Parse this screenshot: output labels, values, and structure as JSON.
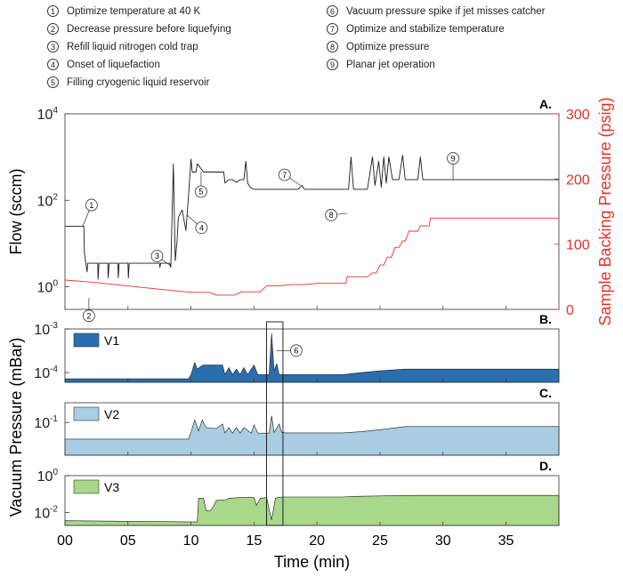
{
  "legend": {
    "items": [
      {
        "num": "1",
        "text": "Optimize temperature at 40 K"
      },
      {
        "num": "2",
        "text": "Decrease pressure before liquefying"
      },
      {
        "num": "3",
        "text": "Refill liquid nitrogen cold trap"
      },
      {
        "num": "4",
        "text": "Onset of liquefaction"
      },
      {
        "num": "5",
        "text": "Filling cryogenic liquid reservoir"
      },
      {
        "num": "6",
        "text": "Vacuum pressure spike if jet misses catcher"
      },
      {
        "num": "7",
        "text": "Optimize and stabilize temperature"
      },
      {
        "num": "8",
        "text": "Optimize pressure"
      },
      {
        "num": "9",
        "text": "Planar jet operation"
      }
    ]
  },
  "colors": {
    "flow": "#1a1a1a",
    "pressure": "#e8302a",
    "v1": "#2a6fad",
    "v2": "#a9cde3",
    "v3": "#a8d88a",
    "axis": "#333333"
  },
  "chart_data": [
    {
      "id": "A",
      "type": "line",
      "panel_label": "A.",
      "ylabel": "Flow (sccm)",
      "y2label": "Sample Backing Pressure (psig)",
      "yscale": "log",
      "ylim": [
        0.3,
        10000
      ],
      "y2lim": [
        0,
        300
      ],
      "yticks": [
        {
          "exp": 0,
          "base": "10",
          "sup": "0"
        },
        {
          "exp": 2,
          "base": "10",
          "sup": "2"
        },
        {
          "exp": 4,
          "base": "10",
          "sup": "4"
        }
      ],
      "y2ticks": [
        0,
        100,
        200,
        300
      ],
      "series": [
        {
          "name": "Flow",
          "axis": "left",
          "x": [
            0,
            1.5,
            1.55,
            1.75,
            1.8,
            2.6,
            2.63,
            2.7,
            3.4,
            3.43,
            3.5,
            4.2,
            4.23,
            4.3,
            5.0,
            5.03,
            5.1,
            7.5,
            7.53,
            7.6,
            8.3,
            8.4,
            8.6,
            8.75,
            8.9,
            9.0,
            9.3,
            9.6,
            9.85,
            10.0,
            10.1,
            10.4,
            10.5,
            11.0,
            12.6,
            12.7,
            13.0,
            13.3,
            13.6,
            13.9,
            14.2,
            14.35,
            14.5,
            14.7,
            15.0,
            15.5,
            18.5,
            18.8,
            19.0,
            19.8,
            20.0,
            22.0,
            22.5,
            22.7,
            22.9,
            24.0,
            24.4,
            24.6,
            24.9,
            25.1,
            25.3,
            25.5,
            25.7,
            26.0,
            26.5,
            26.8,
            27.0,
            27.3,
            28.0,
            28.2,
            28.4,
            28.8,
            29.0,
            39.2
          ],
          "y": [
            25,
            25,
            6,
            2.2,
            3.5,
            3.5,
            1.5,
            3.5,
            3.5,
            1.6,
            3.5,
            3.5,
            1.6,
            3.5,
            3.5,
            1.6,
            3.5,
            3.5,
            2.8,
            3.5,
            3.5,
            2.8,
            700,
            4,
            12,
            40,
            60,
            20,
            200,
            900,
            450,
            450,
            700,
            450,
            450,
            250,
            300,
            300,
            260,
            300,
            300,
            800,
            250,
            200,
            180,
            180,
            180,
            220,
            180,
            180,
            180,
            180,
            180,
            1000,
            180,
            180,
            1000,
            220,
            800,
            200,
            1000,
            250,
            1000,
            300,
            300,
            1100,
            300,
            300,
            300,
            1000,
            300,
            300,
            300,
            300
          ]
        },
        {
          "name": "Sample Backing Pressure",
          "axis": "right",
          "x": [
            0,
            2,
            4,
            6,
            7.5,
            8.5,
            9.5,
            10.5,
            11.5,
            12,
            13.5,
            14,
            15.5,
            16,
            17,
            18,
            19,
            20,
            21,
            22,
            22.3,
            22.4,
            24,
            24.4,
            24.7,
            25,
            25.3,
            25.6,
            25.9,
            26.2,
            26.5,
            26.8,
            27,
            27.3,
            28,
            28.2,
            28.9,
            29,
            39.2
          ],
          "y": [
            45,
            42,
            38,
            34,
            31,
            29,
            27,
            26,
            26,
            22,
            22,
            27,
            27,
            36,
            36,
            38,
            38,
            40,
            40,
            40,
            40,
            50,
            50,
            56,
            56,
            68,
            68,
            80,
            80,
            95,
            95,
            105,
            105,
            120,
            120,
            128,
            128,
            140,
            140
          ]
        }
      ],
      "annotations": [
        {
          "num": "1",
          "x": 1.4,
          "y": 25
        },
        {
          "num": "2",
          "x": 1.9,
          "y": 0.55
        },
        {
          "num": "3",
          "x": 8.3,
          "y": 3.2
        },
        {
          "num": "4",
          "x": 9.7,
          "y": 45
        },
        {
          "num": "5",
          "x": 10.8,
          "y": 450
        },
        {
          "num": "7",
          "x": 18.7,
          "y": 220
        },
        {
          "num": "8",
          "x": 22.4,
          "y": 50
        },
        {
          "num": "9",
          "x": 30.8,
          "y": 300
        }
      ]
    },
    {
      "id": "B",
      "type": "area",
      "panel_label": "B.",
      "series_name": "V1",
      "yscale": "log",
      "ylim": [
        6e-05,
        0.001
      ],
      "yticks": [
        {
          "exp": -4,
          "base": "10",
          "sup": "-4"
        },
        {
          "exp": -3,
          "base": "10",
          "sup": "-3"
        }
      ],
      "x": [
        0,
        9.8,
        10,
        10.3,
        10.5,
        10.8,
        11,
        12.5,
        12.7,
        13,
        13.3,
        13.6,
        13.9,
        14.2,
        14.5,
        15,
        15.3,
        16.2,
        16.4,
        16.6,
        16.8,
        17,
        17.6,
        22,
        23.5,
        25,
        27,
        39.2
      ],
      "y": [
        7.2e-05,
        7.2e-05,
        9e-05,
        0.00017,
        0.00012,
        0.00014,
        0.00015,
        0.00015,
        9e-05,
        0.00013,
        9e-05,
        0.00012,
        9e-05,
        0.00013,
        9e-05,
        0.00015,
        9e-05,
        9e-05,
        0.0008,
        0.00011,
        0.00016,
        9e-05,
        9e-05,
        9e-05,
        0.0001,
        0.00011,
        0.00012,
        0.00012
      ],
      "annotation": {
        "num": "6",
        "x": 16.8,
        "y": 0.00032
      }
    },
    {
      "id": "C",
      "type": "area",
      "panel_label": "C.",
      "series_name": "V2",
      "yscale": "log",
      "ylim": [
        0.01,
        0.4
      ],
      "yticks": [
        {
          "exp": -1,
          "base": "10",
          "sup": "-1"
        }
      ],
      "x": [
        0,
        9.8,
        10,
        10.3,
        10.6,
        10.9,
        11.2,
        12,
        12.5,
        12.7,
        13,
        13.3,
        13.6,
        13.9,
        14.2,
        14.8,
        15,
        15.3,
        16.2,
        16.4,
        16.6,
        17,
        17.2,
        17.5,
        22,
        23.5,
        25,
        27,
        39.2
      ],
      "y": [
        0.031,
        0.031,
        0.05,
        0.12,
        0.055,
        0.12,
        0.07,
        0.065,
        0.09,
        0.048,
        0.07,
        0.047,
        0.07,
        0.047,
        0.07,
        0.047,
        0.085,
        0.047,
        0.047,
        0.16,
        0.05,
        0.09,
        0.05,
        0.048,
        0.048,
        0.052,
        0.06,
        0.075,
        0.075
      ],
      "annotation": null
    },
    {
      "id": "D",
      "type": "area",
      "panel_label": "D.",
      "series_name": "V3",
      "yscale": "log",
      "ylim": [
        0.002,
        1
      ],
      "yticks": [
        {
          "exp": -2,
          "base": "10",
          "sup": "-2"
        },
        {
          "exp": 0,
          "base": "10",
          "sup": "0"
        }
      ],
      "x": [
        0,
        10.5,
        10.6,
        11,
        11.2,
        11.5,
        11.8,
        12,
        12.8,
        13,
        14,
        15,
        15.2,
        15.5,
        16,
        16.4,
        16.7,
        16.9,
        17.2,
        18,
        22,
        23,
        25,
        28,
        39.2
      ],
      "y": [
        0.0036,
        0.0031,
        0.06,
        0.06,
        0.013,
        0.012,
        0.022,
        0.045,
        0.05,
        0.06,
        0.065,
        0.065,
        0.025,
        0.06,
        0.065,
        0.004,
        0.06,
        0.065,
        0.07,
        0.07,
        0.07,
        0.075,
        0.08,
        0.085,
        0.085
      ],
      "annotation": null
    }
  ],
  "shared_axes": {
    "xlim": [
      0,
      39.2
    ],
    "xlabel": "Time (min)",
    "xticks": [
      {
        "value": 0,
        "label": "00"
      },
      {
        "value": 5,
        "label": "05"
      },
      {
        "value": 10,
        "label": "10"
      },
      {
        "value": 15,
        "label": "15"
      },
      {
        "value": 20,
        "label": "20"
      },
      {
        "value": 25,
        "label": "25"
      },
      {
        "value": 30,
        "label": "30"
      },
      {
        "value": 35,
        "label": "35"
      }
    ],
    "vacuum_ylabel": "Vacuum Pressure (mBar)",
    "highlight_box": {
      "x0": 16.0,
      "x1": 17.3
    }
  }
}
